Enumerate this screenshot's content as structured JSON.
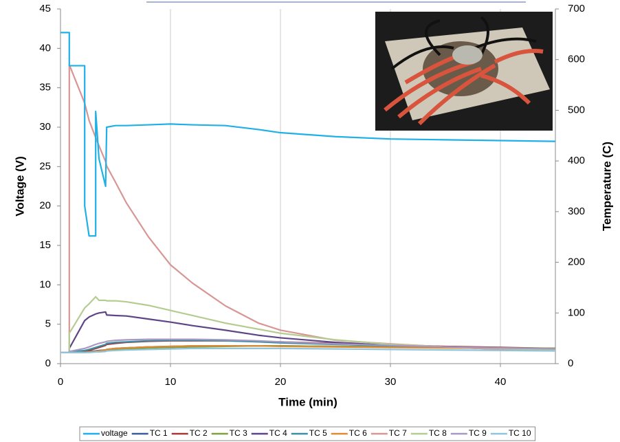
{
  "chart_data": {
    "type": "line",
    "x_label": "Time (min)",
    "y_label": "Voltage (V)",
    "y2_label": "Temperature (C)",
    "x": [
      0,
      0.8,
      0.8,
      2.2,
      2.2,
      2.6,
      3.2,
      3.2,
      3.5,
      4.1,
      4.2,
      5,
      6,
      8,
      10,
      12,
      15,
      18,
      20,
      25,
      30,
      35,
      40,
      45
    ],
    "xlim": [
      0,
      45
    ],
    "xticks": [
      0,
      10,
      20,
      30,
      40
    ],
    "ylim": [
      0,
      45
    ],
    "yticks": [
      0,
      5,
      10,
      15,
      20,
      25,
      30,
      35,
      40,
      45
    ],
    "y2lim": [
      0,
      700
    ],
    "y2ticks": [
      0,
      100,
      200,
      300,
      400,
      500,
      600,
      700
    ],
    "grid": "x",
    "legend": "bottom",
    "series": [
      {
        "name": "voltage",
        "color": "#1fb0e6",
        "values": [
          42,
          42,
          37.8,
          37.8,
          20,
          16.2,
          16.2,
          32,
          26,
          22.5,
          30,
          30.2,
          30.2,
          30.3,
          30.4,
          30.3,
          30.2,
          29.7,
          29.3,
          28.8,
          28.5,
          28.4,
          28.3,
          28.2
        ]
      },
      {
        "name": "TC 1",
        "color": "#3c5a9a",
        "axis": "y2",
        "values": [
          22,
          22,
          22,
          23,
          23,
          24,
          25,
          25,
          26,
          27,
          28,
          30,
          31,
          33,
          34,
          35,
          35,
          35,
          35,
          34,
          33,
          32,
          31,
          30
        ]
      },
      {
        "name": "TC 2",
        "color": "#a03a38",
        "axis": "y2",
        "values": [
          22,
          22,
          22,
          24,
          24,
          26,
          30,
          30,
          32,
          36,
          38,
          40,
          42,
          44,
          45,
          45,
          45,
          44,
          43,
          40,
          37,
          34,
          32,
          30
        ]
      },
      {
        "name": "TC 3",
        "color": "#7fa040",
        "axis": "y2",
        "values": [
          22,
          22,
          22,
          22,
          22,
          23,
          24,
          24,
          25,
          26,
          27,
          28,
          29,
          31,
          32,
          33,
          34,
          35,
          35,
          34,
          33,
          32,
          31,
          30
        ]
      },
      {
        "name": "TC 4",
        "color": "#5c4486",
        "axis": "y2",
        "values": [
          22,
          22,
          30,
          85,
          85,
          92,
          98,
          98,
          100,
          102,
          96,
          95,
          94,
          88,
          82,
          75,
          66,
          56,
          51,
          42,
          36,
          32,
          29,
          27
        ]
      },
      {
        "name": "TC 5",
        "color": "#3c8ea7",
        "axis": "y2",
        "values": [
          22,
          22,
          23,
          26,
          26,
          28,
          32,
          32,
          34,
          38,
          40,
          42,
          43,
          45,
          46,
          46,
          45,
          43,
          41,
          38,
          35,
          32,
          30,
          28
        ]
      },
      {
        "name": "TC 6",
        "color": "#e08a30",
        "axis": "y2",
        "values": [
          22,
          22,
          22,
          22,
          22,
          23,
          24,
          24,
          25,
          27,
          28,
          30,
          31,
          33,
          34,
          35,
          35,
          35,
          34,
          33,
          32,
          31,
          30,
          29
        ]
      },
      {
        "name": "TC 7",
        "color": "#d89594",
        "axis": "y2",
        "values": [
          22,
          22,
          590,
          514,
          514,
          480,
          446,
          446,
          430,
          399,
          390,
          358,
          317,
          250,
          195,
          159,
          114,
          80,
          66,
          46,
          39,
          33,
          28,
          26
        ]
      },
      {
        "name": "TC 8",
        "color": "#b5cc91",
        "axis": "y2",
        "values": [
          22,
          22,
          60,
          110,
          110,
          118,
          132,
          132,
          125,
          125,
          124,
          124,
          122,
          115,
          105,
          95,
          80,
          68,
          60,
          47,
          38,
          33,
          30,
          27
        ]
      },
      {
        "name": "TC 9",
        "color": "#a898c0",
        "axis": "y2",
        "values": [
          22,
          22,
          24,
          30,
          30,
          33,
          38,
          38,
          40,
          43,
          44,
          46,
          47,
          48,
          48,
          48,
          47,
          45,
          43,
          39,
          36,
          33,
          31,
          29
        ]
      },
      {
        "name": "TC 10",
        "color": "#8fc4dc",
        "axis": "y2",
        "values": [
          22,
          22,
          22,
          22,
          22,
          22,
          23,
          23,
          23,
          24,
          25,
          26,
          27,
          28,
          29,
          30,
          30,
          30,
          30,
          29,
          28,
          27,
          26,
          25
        ]
      }
    ]
  }
}
